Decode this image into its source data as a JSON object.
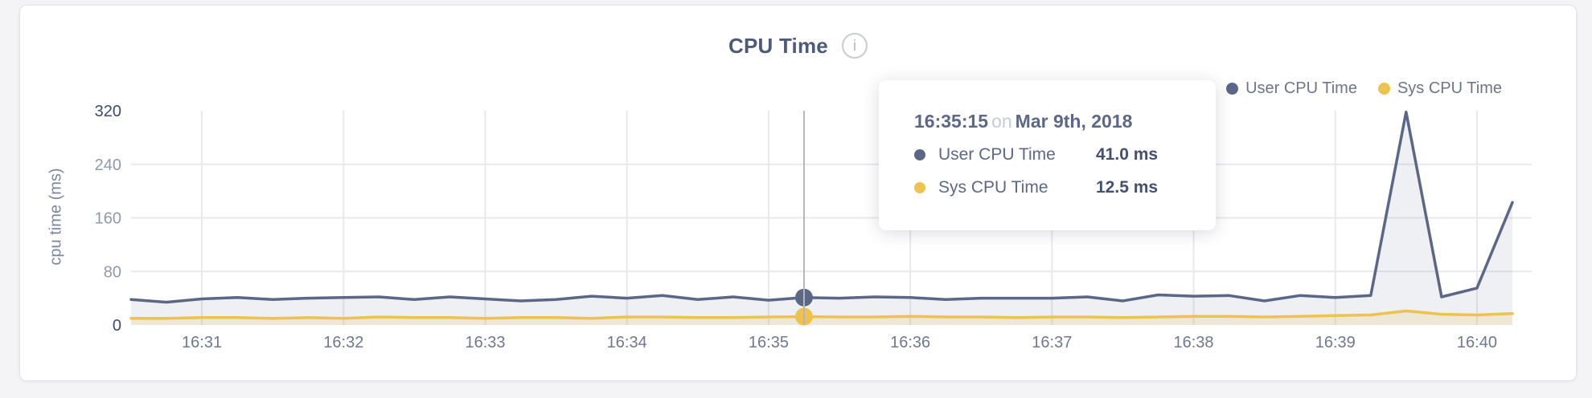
{
  "header": {
    "title": "CPU Time",
    "info_glyph": "i"
  },
  "y_axis": {
    "title": "cpu time (ms)"
  },
  "tooltip": {
    "time": "16:35:15",
    "connector": "on",
    "date": "Mar 9th, 2018",
    "rows": [
      {
        "label": "User CPU Time",
        "value": "41.0 ms"
      },
      {
        "label": "Sys CPU Time",
        "value": "12.5 ms"
      }
    ]
  },
  "theme": {
    "grid_color": "#e8e9ed",
    "cursor_color": "#b4b7bf",
    "axis_tick_dark": "#3d4a6b",
    "axis_tick_light": "#9299a9",
    "x_tick_color": "#6e7891",
    "card_background": "#ffffff",
    "page_background": "#f4f4f6"
  },
  "chart_data": {
    "type": "area",
    "title": "CPU Time",
    "xlabel": "",
    "ylabel": "cpu time (ms)",
    "ylim": [
      0,
      320
    ],
    "grid": true,
    "legend_position": "top-right",
    "x_ticks": [
      "16:31",
      "16:32",
      "16:33",
      "16:34",
      "16:35",
      "16:36",
      "16:37",
      "16:38",
      "16:39",
      "16:40"
    ],
    "y_ticks": [
      0,
      80,
      160,
      240,
      320
    ],
    "x": [
      "16:30:30",
      "16:30:45",
      "16:31:00",
      "16:31:15",
      "16:31:30",
      "16:31:45",
      "16:32:00",
      "16:32:15",
      "16:32:30",
      "16:32:45",
      "16:33:00",
      "16:33:15",
      "16:33:30",
      "16:33:45",
      "16:34:00",
      "16:34:15",
      "16:34:30",
      "16:34:45",
      "16:35:00",
      "16:35:15",
      "16:35:30",
      "16:35:45",
      "16:36:00",
      "16:36:15",
      "16:36:30",
      "16:36:45",
      "16:37:00",
      "16:37:15",
      "16:37:30",
      "16:37:45",
      "16:38:00",
      "16:38:15",
      "16:38:30",
      "16:38:45",
      "16:39:00",
      "16:39:15",
      "16:39:30",
      "16:39:45",
      "16:40:00",
      "16:40:15"
    ],
    "series": [
      {
        "name": "User CPU Time",
        "color": "#5a6787",
        "fill": "rgba(92,106,135,0.10)",
        "values": [
          38,
          34,
          39,
          41,
          38,
          40,
          41,
          42,
          38,
          42,
          39,
          36,
          38,
          43,
          40,
          44,
          38,
          42,
          37,
          41,
          40,
          42,
          41,
          38,
          40,
          40,
          40,
          42,
          36,
          45,
          43,
          44,
          36,
          44,
          41,
          44,
          318,
          42,
          55,
          183
        ]
      },
      {
        "name": "Sys CPU Time",
        "color": "#eec24e",
        "fill": "rgba(238,194,78,0.18)",
        "values": [
          10,
          10,
          11,
          11,
          10,
          11,
          10,
          12,
          11,
          11,
          10,
          11,
          11,
          10,
          12,
          12,
          11,
          11,
          12,
          12.5,
          12,
          12,
          13,
          12,
          12,
          11,
          12,
          12,
          11,
          12,
          13,
          13,
          12,
          13,
          14,
          15,
          21,
          16,
          15,
          17
        ]
      }
    ],
    "cursor": {
      "x": "16:35:15",
      "values": [
        41.0,
        12.5
      ]
    }
  }
}
